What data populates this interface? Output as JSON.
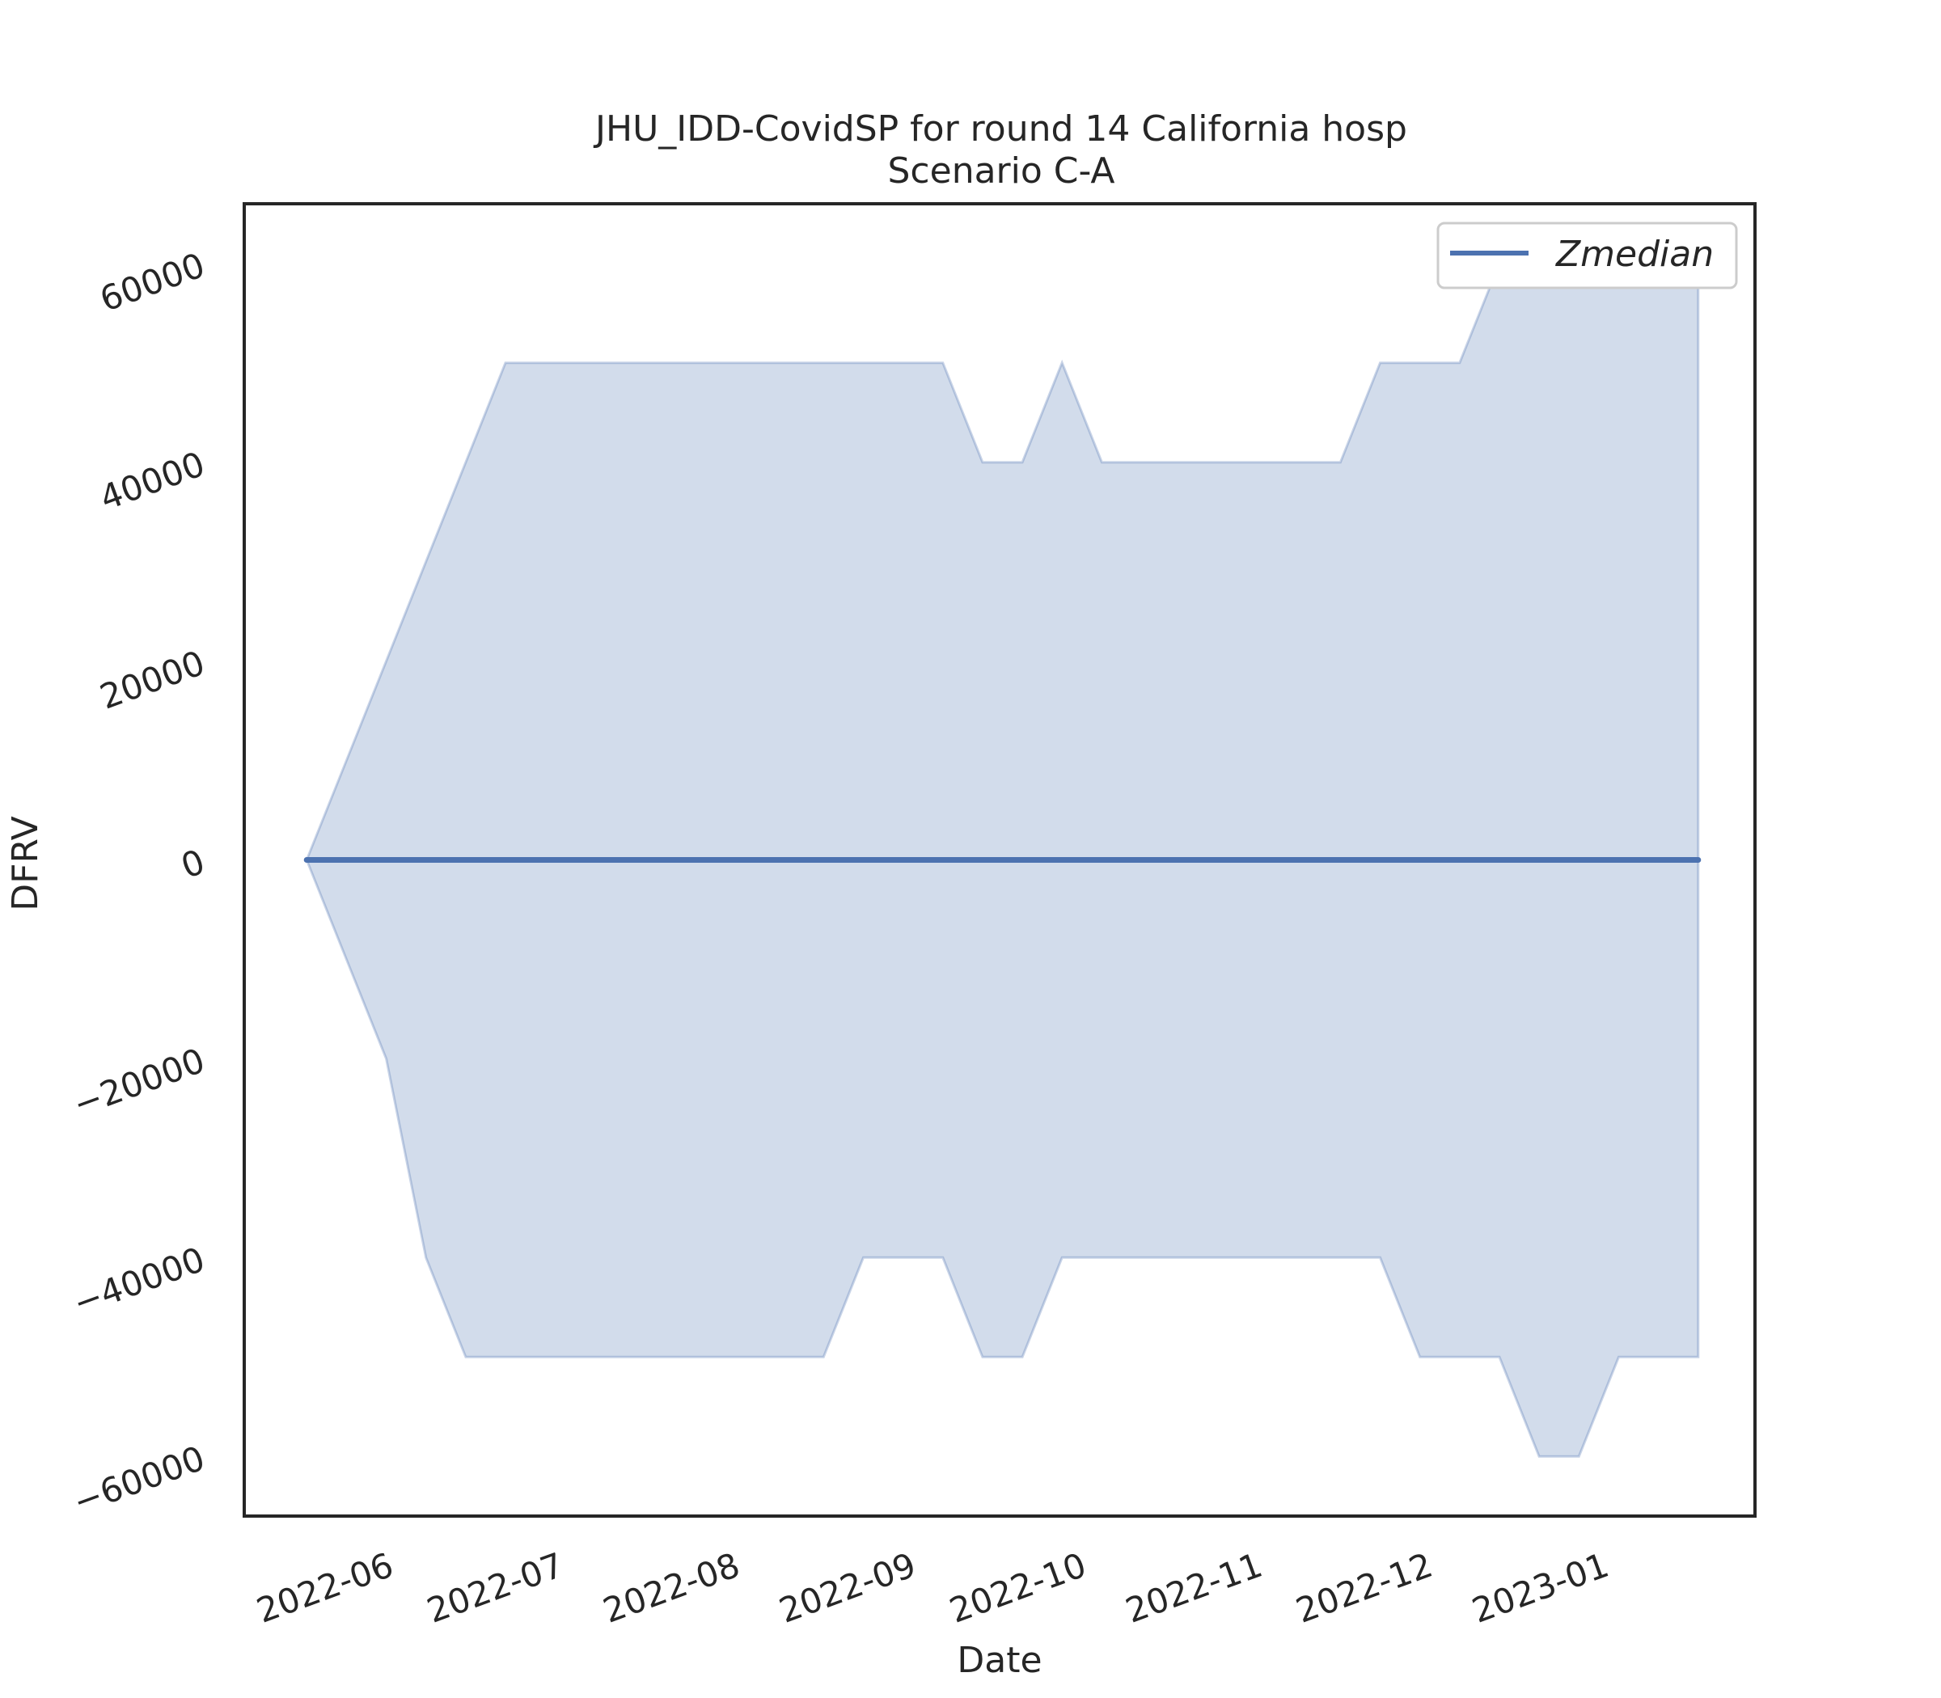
{
  "chart_data": {
    "type": "area",
    "title": "JHU_IDD-CovidSP for round 14 California hosp",
    "subtitle": "Scenario C-A",
    "xlabel": "Date",
    "ylabel": "DFRV",
    "ylim": [
      -66000,
      66000
    ],
    "xlim": [
      "2022-05-10",
      "2023-01-31"
    ],
    "yticks": [
      -60000,
      -40000,
      -20000,
      0,
      20000,
      40000,
      60000
    ],
    "ytick_labels": [
      "−60000",
      "−40000",
      "−20000",
      "0",
      "20000",
      "40000",
      "60000"
    ],
    "xticks": [
      "2022-06-01",
      "2022-07-01",
      "2022-08-01",
      "2022-09-01",
      "2022-10-01",
      "2022-11-01",
      "2022-12-01",
      "2023-01-01"
    ],
    "xtick_labels": [
      "2022-06",
      "2022-07",
      "2022-08",
      "2022-09",
      "2022-10",
      "2022-11",
      "2022-12",
      "2023-01"
    ],
    "legend_position": "top-right",
    "grid": false,
    "colors": {
      "line": "#4c72b0",
      "band": "#4c72b0"
    },
    "series": [
      {
        "name": "Zmedian",
        "x": [
          "2022-05-21",
          "2023-01-21"
        ],
        "y": [
          0,
          0
        ]
      }
    ],
    "band": {
      "x": [
        "2022-05-21",
        "2022-05-28",
        "2022-06-04",
        "2022-06-11",
        "2022-06-18",
        "2022-06-25",
        "2022-07-02",
        "2022-07-09",
        "2022-07-16",
        "2022-07-23",
        "2022-07-30",
        "2022-08-06",
        "2022-08-13",
        "2022-08-20",
        "2022-08-27",
        "2022-09-03",
        "2022-09-10",
        "2022-09-17",
        "2022-09-24",
        "2022-10-01",
        "2022-10-08",
        "2022-10-15",
        "2022-10-22",
        "2022-10-29",
        "2022-11-05",
        "2022-11-12",
        "2022-11-19",
        "2022-11-26",
        "2022-12-03",
        "2022-12-10",
        "2022-12-17",
        "2022-12-24",
        "2022-12-31",
        "2023-01-07",
        "2023-01-14",
        "2023-01-21"
      ],
      "upper": [
        0,
        10000,
        20000,
        30000,
        40000,
        50000,
        50000,
        50000,
        50000,
        50000,
        50000,
        50000,
        50000,
        50000,
        50000,
        50000,
        50000,
        40000,
        40000,
        50000,
        40000,
        40000,
        40000,
        40000,
        40000,
        40000,
        40000,
        50000,
        50000,
        50000,
        60000,
        60000,
        60000,
        60000,
        60000,
        60000
      ],
      "lower": [
        0,
        -10000,
        -20000,
        -40000,
        -50000,
        -50000,
        -50000,
        -50000,
        -50000,
        -50000,
        -50000,
        -50000,
        -50000,
        -50000,
        -40000,
        -40000,
        -40000,
        -50000,
        -50000,
        -40000,
        -40000,
        -40000,
        -40000,
        -40000,
        -40000,
        -40000,
        -40000,
        -40000,
        -50000,
        -50000,
        -50000,
        -60000,
        -60000,
        -50000,
        -50000,
        -50000
      ]
    }
  }
}
